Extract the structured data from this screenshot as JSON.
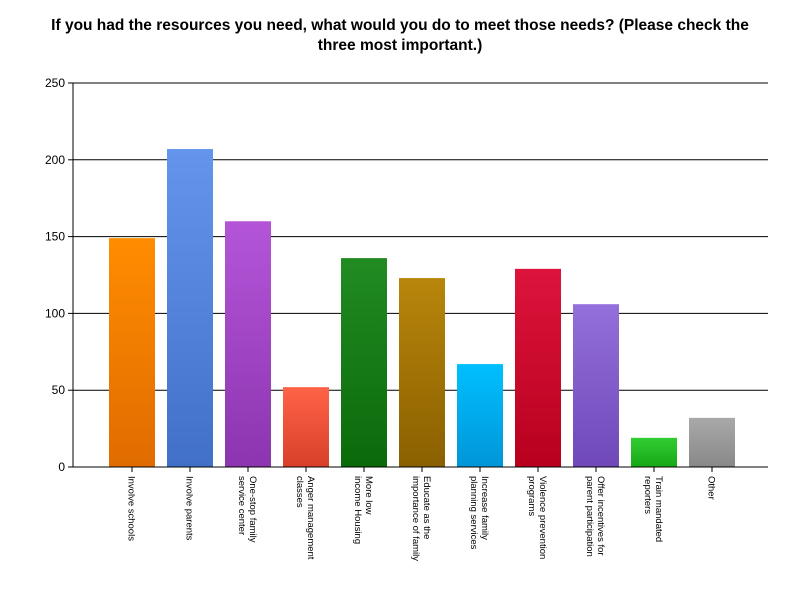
{
  "chart_data": {
    "type": "bar",
    "title": "If you had the resources you need, what would you do to meet those needs? (Please check the three most important.)",
    "xlabel": "",
    "ylabel": "",
    "ylim": [
      0,
      250
    ],
    "yticks": [
      0,
      50,
      100,
      150,
      200,
      250
    ],
    "grid": true,
    "legend": "none",
    "categories": [
      [
        "Involve schools"
      ],
      [
        "Involve parents"
      ],
      [
        "One-stop family",
        "service center"
      ],
      [
        "Anger management",
        "classes"
      ],
      [
        "More low",
        "income Housing"
      ],
      [
        "Educate as the",
        "importance of family"
      ],
      [
        "Increase family",
        "planning services"
      ],
      [
        "Violence prevention",
        "programs"
      ],
      [
        "Offer incentives for",
        "parent participation"
      ],
      [
        "Train mandated",
        "reporters"
      ],
      [
        "Other"
      ]
    ],
    "values": [
      149,
      207,
      160,
      52,
      136,
      123,
      67,
      129,
      106,
      19,
      32
    ],
    "colors": [
      [
        "#ff8c00",
        "#e06c00"
      ],
      [
        "#6495ed",
        "#4170c8"
      ],
      [
        "#b455d8",
        "#8c35b0"
      ],
      [
        "#ff6347",
        "#d8402a"
      ],
      [
        "#228b22",
        "#0a6a0a"
      ],
      [
        "#b8860b",
        "#8a6000"
      ],
      [
        "#00bfff",
        "#0096d8"
      ],
      [
        "#dc143c",
        "#b8001e"
      ],
      [
        "#9370db",
        "#7048b8"
      ],
      [
        "#32cd32",
        "#16a816"
      ],
      [
        "#a9a9a9",
        "#888888"
      ]
    ]
  }
}
